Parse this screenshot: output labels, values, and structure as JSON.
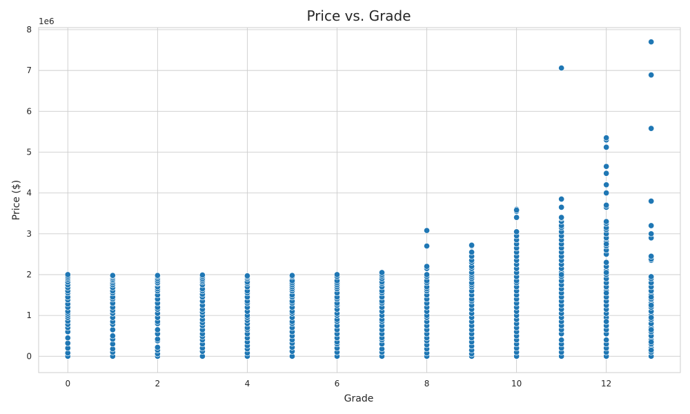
{
  "chart_data": {
    "type": "scatter",
    "title": "Price vs. Grade",
    "xlabel": "Grade",
    "ylabel": "Price ($)",
    "y_offset_label": "1e6",
    "xlim": [
      -0.65,
      13.65
    ],
    "ylim": [
      -400000,
      8050000
    ],
    "x_ticks": [
      0,
      2,
      4,
      6,
      8,
      10,
      12
    ],
    "x_tick_labels": [
      "0",
      "2",
      "4",
      "6",
      "8",
      "10",
      "12"
    ],
    "y_ticks": [
      0,
      1000000,
      2000000,
      3000000,
      4000000,
      5000000,
      6000000,
      7000000,
      8000000
    ],
    "y_tick_labels": [
      "0",
      "1",
      "2",
      "3",
      "4",
      "5",
      "6",
      "7",
      "8"
    ],
    "grid": true,
    "point_color": "#1f77b4",
    "series": [
      {
        "x": [
          0,
          0,
          0,
          0,
          0,
          0,
          0,
          0,
          0,
          0,
          0,
          0,
          0,
          0,
          0,
          0,
          0,
          0,
          0,
          0,
          0,
          0,
          0,
          0,
          0,
          0,
          1,
          1,
          1,
          1,
          1,
          1,
          1,
          1,
          1,
          1,
          1,
          1,
          1,
          1,
          1,
          1,
          1,
          1,
          1,
          1,
          1,
          1,
          1,
          1,
          1,
          1,
          2,
          2,
          2,
          2,
          2,
          2,
          2,
          2,
          2,
          2,
          2,
          2,
          2,
          2,
          2,
          2,
          2,
          2,
          2,
          2,
          2,
          2,
          2,
          2,
          2,
          2,
          3,
          3,
          3,
          3,
          3,
          3,
          3,
          3,
          3,
          3,
          3,
          3,
          3,
          3,
          3,
          3,
          3,
          3,
          3,
          3,
          3,
          3,
          3,
          3,
          3,
          3,
          4,
          4,
          4,
          4,
          4,
          4,
          4,
          4,
          4,
          4,
          4,
          4,
          4,
          4,
          4,
          4,
          4,
          4,
          4,
          4,
          4,
          4,
          4,
          4,
          4,
          4,
          5,
          5,
          5,
          5,
          5,
          5,
          5,
          5,
          5,
          5,
          5,
          5,
          5,
          5,
          5,
          5,
          5,
          5,
          5,
          5,
          5,
          5,
          5,
          5,
          5,
          5,
          6,
          6,
          6,
          6,
          6,
          6,
          6,
          6,
          6,
          6,
          6,
          6,
          6,
          6,
          6,
          6,
          6,
          6,
          6,
          6,
          6,
          6,
          6,
          6,
          6,
          6,
          7,
          7,
          7,
          7,
          7,
          7,
          7,
          7,
          7,
          7,
          7,
          7,
          7,
          7,
          7,
          7,
          7,
          7,
          7,
          7,
          7,
          7,
          7,
          7,
          7,
          7,
          8,
          8,
          8,
          8,
          8,
          8,
          8,
          8,
          8,
          8,
          8,
          8,
          8,
          8,
          8,
          8,
          8,
          8,
          8,
          8,
          8,
          8,
          8,
          8,
          8,
          8,
          8,
          8,
          9,
          9,
          9,
          9,
          9,
          9,
          9,
          9,
          9,
          9,
          9,
          9,
          9,
          9,
          9,
          9,
          9,
          9,
          9,
          9,
          9,
          9,
          9,
          9,
          9,
          9,
          9,
          9,
          9,
          9,
          9,
          9,
          9,
          10,
          10,
          10,
          10,
          10,
          10,
          10,
          10,
          10,
          10,
          10,
          10,
          10,
          10,
          10,
          10,
          10,
          10,
          10,
          10,
          10,
          10,
          10,
          10,
          10,
          10,
          10,
          10,
          10,
          10,
          10,
          10,
          10,
          10,
          10,
          10,
          11,
          11,
          11,
          11,
          11,
          11,
          11,
          11,
          11,
          11,
          11,
          11,
          11,
          11,
          11,
          11,
          11,
          11,
          11,
          11,
          11,
          11,
          11,
          11,
          11,
          11,
          11,
          11,
          11,
          11,
          11,
          11,
          11,
          11,
          11,
          11,
          11,
          11,
          11,
          11,
          12,
          12,
          12,
          12,
          12,
          12,
          12,
          12,
          12,
          12,
          12,
          12,
          12,
          12,
          12,
          12,
          12,
          12,
          12,
          12,
          12,
          12,
          12,
          12,
          12,
          12,
          12,
          12,
          12,
          12,
          12,
          12,
          12,
          12,
          12,
          12,
          12,
          12,
          12,
          12,
          12,
          12,
          12,
          12,
          12,
          12,
          13,
          13,
          13,
          13,
          13,
          13,
          13,
          13,
          13,
          13,
          13,
          13,
          13,
          13,
          13,
          13,
          13,
          13,
          13,
          13,
          13,
          13,
          13,
          13,
          13,
          13,
          13,
          13,
          13,
          13,
          13,
          13,
          13,
          13,
          13,
          13,
          13
        ],
        "y": [
          0,
          80000,
          200000,
          320000,
          450000,
          600000,
          700000,
          780000,
          860000,
          950000,
          1000000,
          1050000,
          1100000,
          1200000,
          1280000,
          1380000,
          1450000,
          1550000,
          1600000,
          1680000,
          1750000,
          1820000,
          1880000,
          1920000,
          1960000,
          2000000,
          0,
          100000,
          180000,
          300000,
          420000,
          500000,
          650000,
          780000,
          850000,
          950000,
          1050000,
          1120000,
          1200000,
          1300000,
          1400000,
          1450000,
          1550000,
          1600000,
          1680000,
          1750000,
          1800000,
          1850000,
          1880000,
          1920000,
          1960000,
          1980000,
          0,
          60000,
          150000,
          220000,
          380000,
          420000,
          550000,
          650000,
          800000,
          850000,
          950000,
          1050000,
          1150000,
          1200000,
          1300000,
          1400000,
          1500000,
          1600000,
          1650000,
          1700000,
          1780000,
          1800000,
          1850000,
          1900000,
          1950000,
          1980000,
          0,
          120000,
          200000,
          300000,
          400000,
          480000,
          550000,
          650000,
          750000,
          820000,
          900000,
          1000000,
          1080000,
          1150000,
          1250000,
          1350000,
          1450000,
          1520000,
          1600000,
          1650000,
          1750000,
          1820000,
          1860000,
          1900000,
          1950000,
          1990000,
          0,
          80000,
          180000,
          260000,
          350000,
          450000,
          550000,
          650000,
          700000,
          800000,
          880000,
          950000,
          1000000,
          1100000,
          1200000,
          1300000,
          1350000,
          1450000,
          1550000,
          1600000,
          1700000,
          1780000,
          1820000,
          1900000,
          1940000,
          1970000,
          0,
          120000,
          220000,
          320000,
          400000,
          500000,
          600000,
          700000,
          800000,
          850000,
          950000,
          1050000,
          1100000,
          1200000,
          1300000,
          1350000,
          1450000,
          1500000,
          1600000,
          1650000,
          1700000,
          1750000,
          1800000,
          1850000,
          1950000,
          1980000,
          0,
          100000,
          200000,
          300000,
          350000,
          450000,
          550000,
          650000,
          750000,
          850000,
          900000,
          1000000,
          1050000,
          1150000,
          1250000,
          1300000,
          1400000,
          1450000,
          1550000,
          1650000,
          1700000,
          1750000,
          1800000,
          1850000,
          1950000,
          2000000,
          0,
          100000,
          180000,
          300000,
          400000,
          450000,
          550000,
          650000,
          750000,
          850000,
          900000,
          1000000,
          1100000,
          1200000,
          1300000,
          1350000,
          1450000,
          1550000,
          1600000,
          1700000,
          1780000,
          1820000,
          1900000,
          1960000,
          2000000,
          2050000,
          0,
          80000,
          180000,
          280000,
          380000,
          450000,
          550000,
          650000,
          750000,
          850000,
          950000,
          1000000,
          1100000,
          1200000,
          1300000,
          1400000,
          1500000,
          1600000,
          1650000,
          1700000,
          1800000,
          1850000,
          1950000,
          2000000,
          2150000,
          2200000,
          2700000,
          3080000,
          0,
          60000,
          150000,
          250000,
          350000,
          450000,
          550000,
          650000,
          750000,
          850000,
          950000,
          1050000,
          1150000,
          1250000,
          1350000,
          1400000,
          1500000,
          1600000,
          1700000,
          1750000,
          1800000,
          1900000,
          1950000,
          2000000,
          2050000,
          2150000,
          2200000,
          2300000,
          2350000,
          2450000,
          2550000,
          2700000,
          2720000,
          0,
          100000,
          200000,
          300000,
          400000,
          500000,
          600000,
          700000,
          800000,
          900000,
          1000000,
          1100000,
          1200000,
          1300000,
          1400000,
          1500000,
          1600000,
          1700000,
          1800000,
          1850000,
          1950000,
          2050000,
          2150000,
          2250000,
          2350000,
          2450000,
          2550000,
          2650000,
          2750000,
          2850000,
          2950000,
          3050000,
          3400000,
          3550000,
          3600000,
          3580000,
          0,
          100000,
          200000,
          300000,
          400000,
          550000,
          650000,
          750000,
          850000,
          950000,
          1050000,
          1150000,
          1250000,
          1350000,
          1450000,
          1550000,
          1650000,
          1750000,
          1850000,
          1950000,
          2050000,
          2150000,
          2250000,
          2350000,
          2450000,
          2550000,
          2650000,
          2750000,
          2850000,
          2950000,
          3050000,
          3150000,
          3200000,
          3300000,
          3380000,
          3400000,
          3650000,
          3850000,
          7060000,
          2000000,
          0,
          100000,
          200000,
          300000,
          400000,
          550000,
          650000,
          750000,
          850000,
          950000,
          1050000,
          1150000,
          1250000,
          1350000,
          1450000,
          1600000,
          1700000,
          1800000,
          1900000,
          2000000,
          2100000,
          2200000,
          2300000,
          2500000,
          2600000,
          2700000,
          2800000,
          2900000,
          3000000,
          3100000,
          3150000,
          3250000,
          3300000,
          3650000,
          3700000,
          4000000,
          4200000,
          4480000,
          4650000,
          5120000,
          5300000,
          5350000,
          1550000,
          2050000,
          2750000,
          850000,
          0,
          100000,
          200000,
          300000,
          400000,
          500000,
          600000,
          700000,
          800000,
          900000,
          1000000,
          1100000,
          1200000,
          1300000,
          1400000,
          1500000,
          1600000,
          1700000,
          1800000,
          1900000,
          1950000,
          2350000,
          2380000,
          2450000,
          2900000,
          3000000,
          3200000,
          3800000,
          5580000,
          6890000,
          7700000,
          1450000,
          1250000,
          950000,
          650000,
          350000,
          150000
        ]
      }
    ]
  }
}
